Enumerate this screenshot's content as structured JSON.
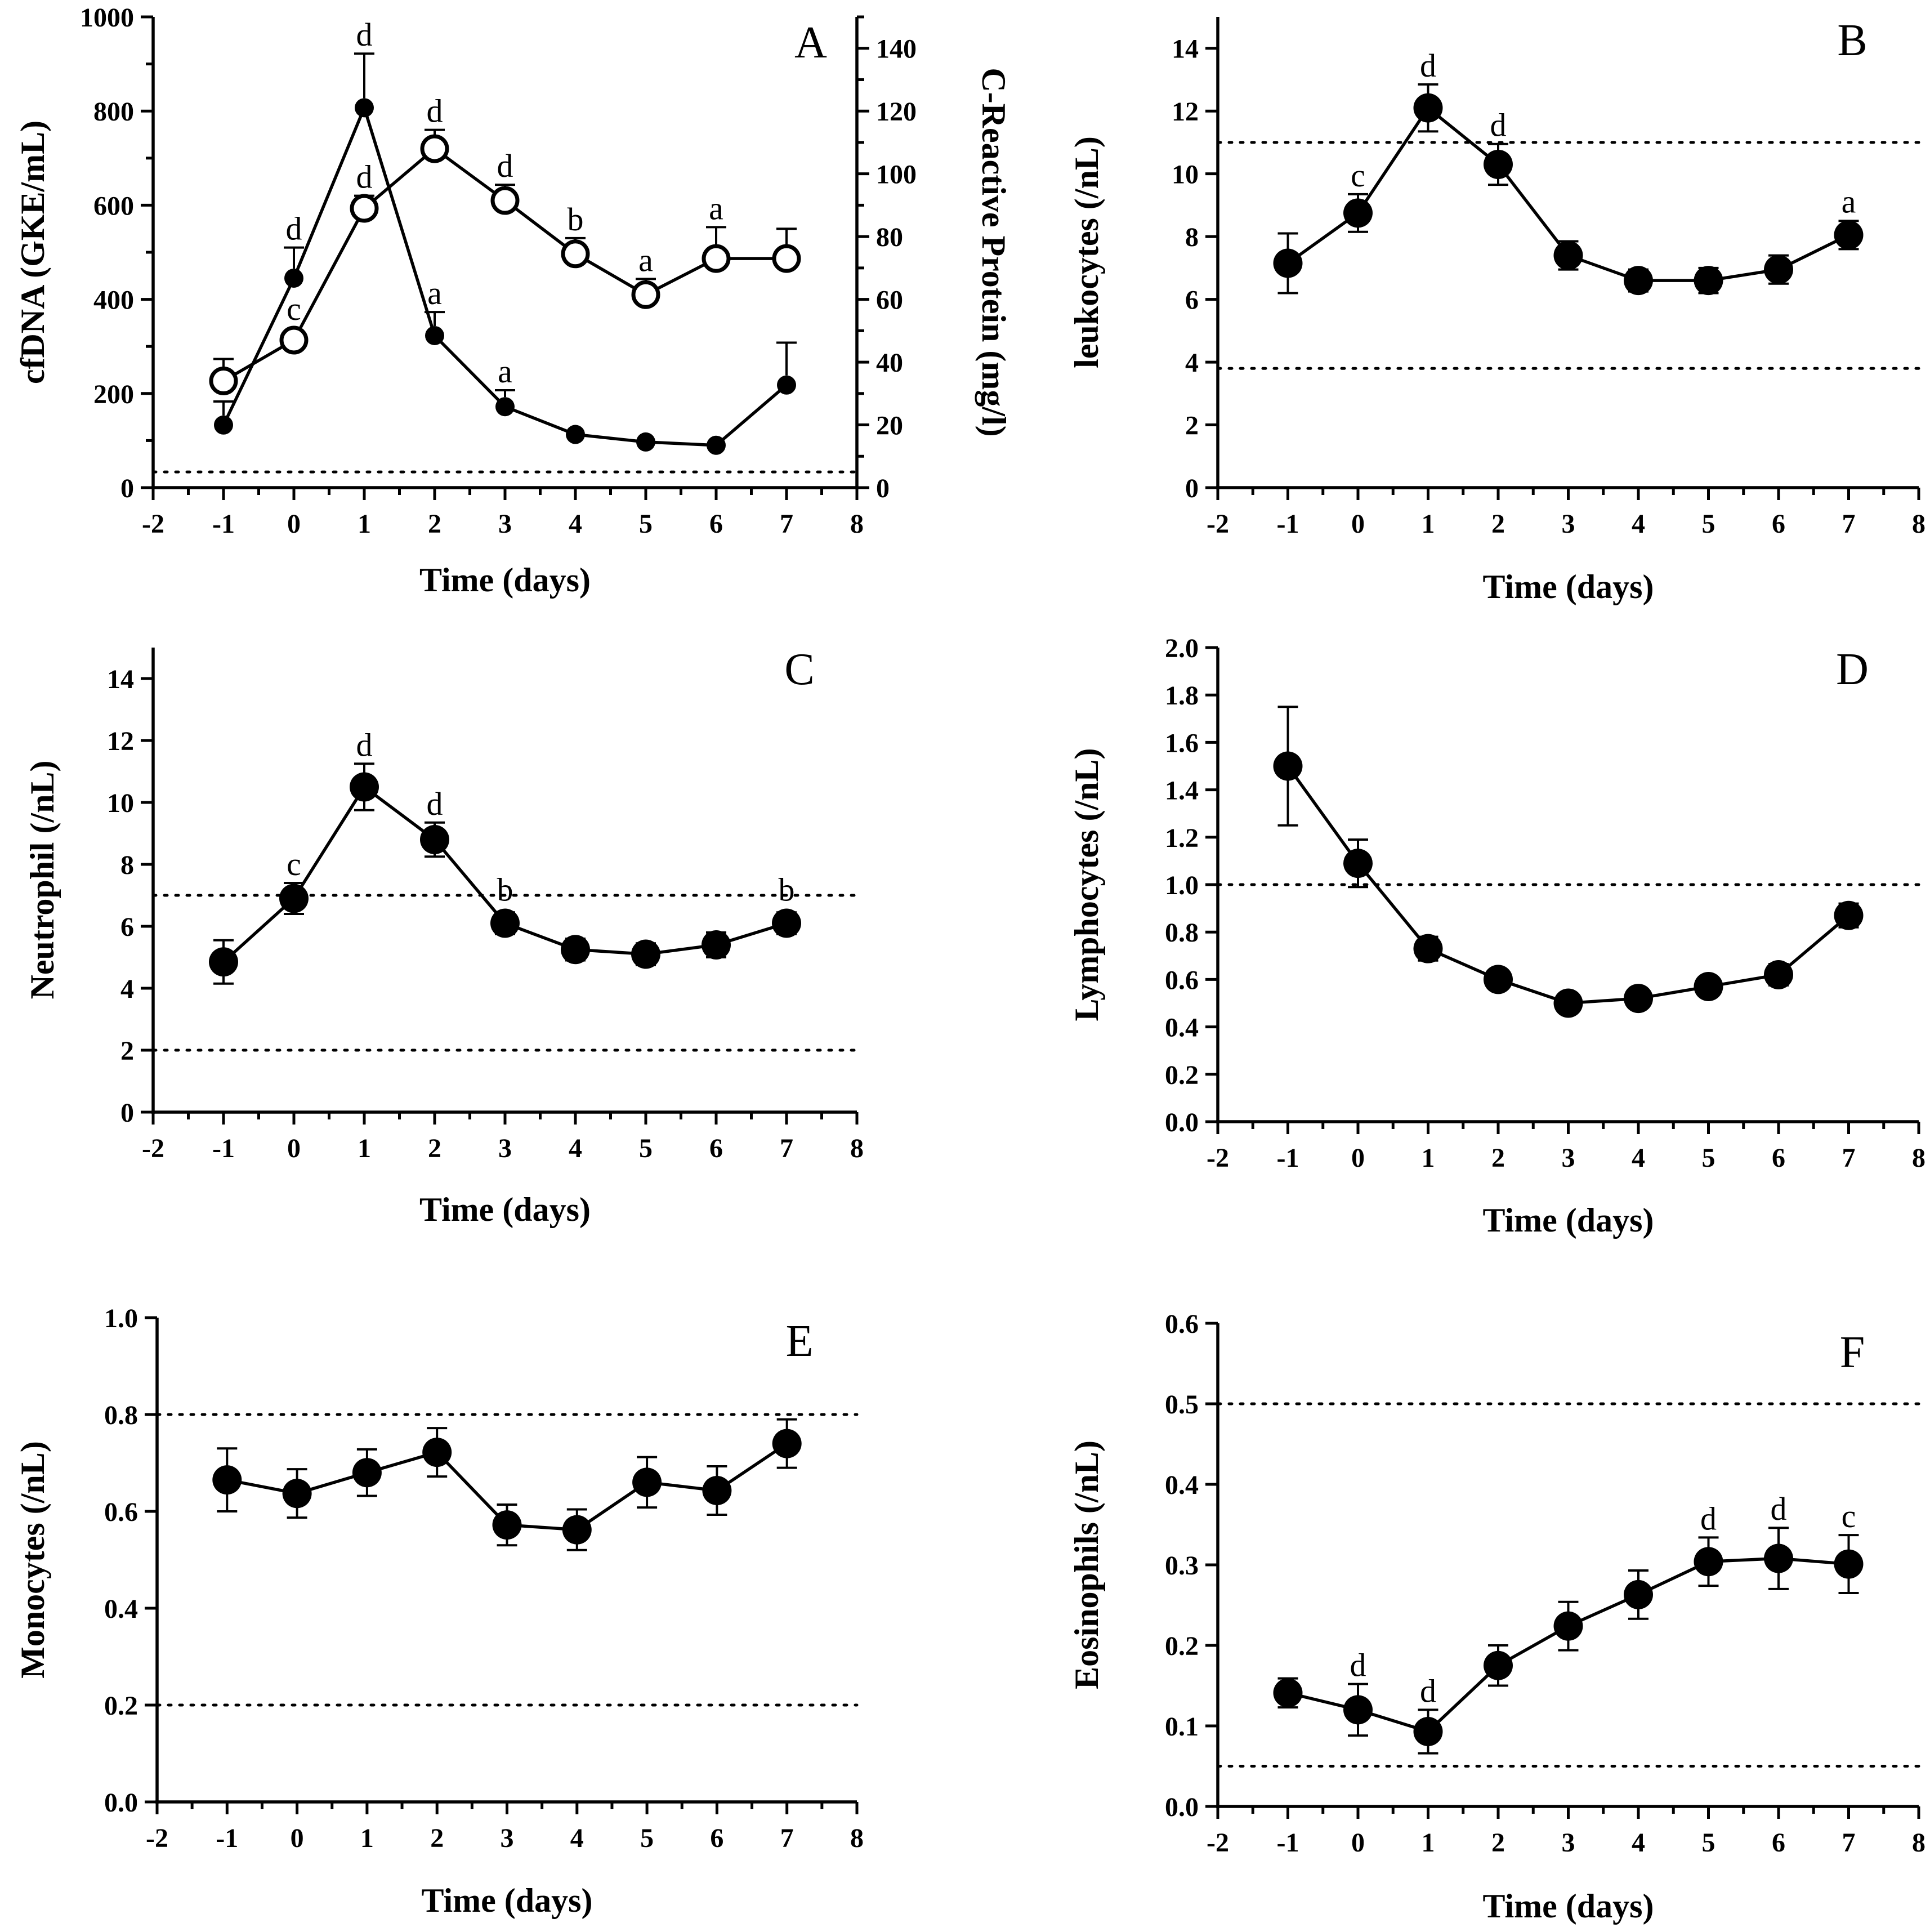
{
  "figure": {
    "x_label": "Time (days)"
  },
  "chart_data": [
    {
      "panel": "A",
      "type": "line",
      "xlabel": "Time (days)",
      "ylabel": "cfDNA (GKE/mL)",
      "y2label": "C-Reactive Protein (mg/l)",
      "xlim": [
        -2,
        8
      ],
      "xticks": [
        -2,
        -1,
        0,
        1,
        2,
        3,
        4,
        5,
        6,
        7,
        8
      ],
      "ylim": [
        0,
        1000
      ],
      "yticks": [
        0,
        200,
        400,
        600,
        800,
        1000
      ],
      "y2lim": [
        0,
        150
      ],
      "y2ticks": [
        0,
        20,
        40,
        60,
        80,
        100,
        120,
        140
      ],
      "ref_lines": [
        5
      ],
      "ref_lines_axis": "y2",
      "series": [
        {
          "name": "cfDNA",
          "axis": "y",
          "marker": "filled-small",
          "x": [
            -1,
            0,
            1,
            2,
            3,
            4,
            5,
            6,
            7
          ],
          "values": [
            133,
            445,
            807,
            323,
            172,
            113,
            97,
            90,
            218
          ],
          "errors": [
            50,
            65,
            115,
            50,
            35,
            0,
            0,
            0,
            90
          ],
          "labels": [
            "",
            "d",
            "d",
            "a",
            "a",
            "",
            "",
            "",
            ""
          ]
        },
        {
          "name": "C-Reactive Protein",
          "axis": "y2",
          "marker": "open",
          "x": [
            -1,
            0,
            1,
            2,
            3,
            4,
            5,
            6,
            7
          ],
          "values": [
            34,
            47,
            89,
            108,
            91.5,
            74.5,
            61.5,
            73,
            73
          ],
          "errors": [
            7,
            3,
            4,
            6,
            5,
            5,
            5,
            10,
            9.5
          ],
          "labels": [
            "",
            "c",
            "d",
            "d",
            "d",
            "b",
            "a",
            "a",
            ""
          ]
        }
      ]
    },
    {
      "panel": "B",
      "type": "line",
      "xlabel": "Time (days)",
      "ylabel": "leukocytes (/nL)",
      "xlim": [
        -2,
        8
      ],
      "xticks": [
        -2,
        -1,
        0,
        1,
        2,
        3,
        4,
        5,
        6,
        7,
        8
      ],
      "ylim": [
        0,
        15
      ],
      "yticks": [
        0,
        2,
        4,
        6,
        8,
        10,
        12,
        14
      ],
      "ref_lines": [
        3.8,
        11
      ],
      "series": [
        {
          "name": "leukocytes",
          "marker": "filled",
          "x": [
            -1,
            0,
            1,
            2,
            3,
            4,
            5,
            6,
            7
          ],
          "values": [
            7.15,
            8.75,
            12.1,
            10.3,
            7.4,
            6.6,
            6.6,
            6.95,
            8.05
          ],
          "errors": [
            0.95,
            0.6,
            0.75,
            0.65,
            0.45,
            0.35,
            0.4,
            0.45,
            0.45
          ],
          "labels": [
            "",
            "c",
            "d",
            "d",
            "",
            "",
            "",
            "",
            "a"
          ]
        }
      ]
    },
    {
      "panel": "C",
      "type": "line",
      "xlabel": "Time (days)",
      "ylabel": "Neutrophil (/nL)",
      "xlim": [
        -2,
        8
      ],
      "xticks": [
        -2,
        -1,
        0,
        1,
        2,
        3,
        4,
        5,
        6,
        7,
        8
      ],
      "ylim": [
        0,
        15
      ],
      "yticks": [
        0,
        2,
        4,
        6,
        8,
        10,
        12,
        14
      ],
      "ref_lines": [
        2,
        7
      ],
      "series": [
        {
          "name": "Neutrophil",
          "marker": "filled",
          "x": [
            -1,
            0,
            1,
            2,
            3,
            4,
            5,
            6,
            7
          ],
          "values": [
            4.85,
            6.9,
            10.5,
            8.8,
            6.1,
            5.25,
            5.1,
            5.4,
            6.1
          ],
          "errors": [
            0.7,
            0.5,
            0.75,
            0.55,
            0.35,
            0.35,
            0.35,
            0.4,
            0.35
          ],
          "labels": [
            "",
            "c",
            "d",
            "d",
            "b",
            "",
            "",
            "",
            "b"
          ]
        }
      ]
    },
    {
      "panel": "D",
      "type": "line",
      "xlabel": "Time (days)",
      "ylabel": "Lymphocytes (/nL)",
      "xlim": [
        -2,
        8
      ],
      "xticks": [
        -2,
        -1,
        0,
        1,
        2,
        3,
        4,
        5,
        6,
        7,
        8
      ],
      "ylim": [
        0,
        2
      ],
      "yticks": [
        "0.0",
        "0.2",
        "0.4",
        "0.6",
        "0.8",
        "1.0",
        "1.2",
        "1.4",
        "1.6",
        "1.8",
        "2.0"
      ],
      "ref_lines": [
        1.0
      ],
      "series": [
        {
          "name": "Lymphocytes",
          "marker": "filled",
          "x": [
            -1,
            0,
            1,
            2,
            3,
            4,
            5,
            6,
            7
          ],
          "values": [
            1.5,
            1.09,
            0.73,
            0.6,
            0.5,
            0.52,
            0.57,
            0.62,
            0.87
          ],
          "errors": [
            0.25,
            0.1,
            0.05,
            0.04,
            0.0,
            0.0,
            0.04,
            0.045,
            0.05
          ],
          "labels": [
            "",
            "",
            "",
            "",
            "",
            "",
            "",
            "",
            ""
          ]
        }
      ]
    },
    {
      "panel": "E",
      "type": "line",
      "xlabel": "Time (days)",
      "ylabel": "Monocytes (/nL)",
      "xlim": [
        -2,
        8
      ],
      "xticks": [
        -2,
        -1,
        0,
        1,
        2,
        3,
        4,
        5,
        6,
        7,
        8
      ],
      "ylim": [
        0,
        1
      ],
      "yticks": [
        "0.0",
        "0.2",
        "0.4",
        "0.6",
        "0.8",
        "1.0"
      ],
      "ref_lines": [
        0.2,
        0.8
      ],
      "series": [
        {
          "name": "Monocytes",
          "marker": "filled",
          "x": [
            -1,
            0,
            1,
            2,
            3,
            4,
            5,
            6,
            7
          ],
          "values": [
            0.665,
            0.637,
            0.68,
            0.722,
            0.572,
            0.562,
            0.66,
            0.643,
            0.74
          ],
          "errors": [
            0.065,
            0.05,
            0.048,
            0.05,
            0.042,
            0.042,
            0.052,
            0.05,
            0.05
          ],
          "labels": [
            "",
            "",
            "",
            "",
            "",
            "",
            "",
            "",
            ""
          ]
        }
      ]
    },
    {
      "panel": "F",
      "type": "line",
      "xlabel": "Time (days)",
      "ylabel": "Eosinophils (/nL)",
      "xlim": [
        -2,
        8
      ],
      "xticks": [
        -2,
        -1,
        0,
        1,
        2,
        3,
        4,
        5,
        6,
        7,
        8
      ],
      "ylim": [
        0,
        0.6
      ],
      "yticks": [
        "0.0",
        "0.1",
        "0.2",
        "0.3",
        "0.4",
        "0.5",
        "0.6"
      ],
      "ref_lines": [
        0.05,
        0.5
      ],
      "series": [
        {
          "name": "Eosinophils",
          "marker": "filled",
          "x": [
            -1,
            0,
            1,
            2,
            3,
            4,
            5,
            6,
            7
          ],
          "values": [
            0.141,
            0.12,
            0.093,
            0.175,
            0.224,
            0.263,
            0.304,
            0.308,
            0.301
          ],
          "errors": [
            0.018,
            0.032,
            0.027,
            0.025,
            0.03,
            0.03,
            0.03,
            0.038,
            0.036
          ],
          "labels": [
            "",
            "d",
            "d",
            "",
            "",
            "",
            "d",
            "d",
            "c"
          ]
        }
      ]
    }
  ]
}
